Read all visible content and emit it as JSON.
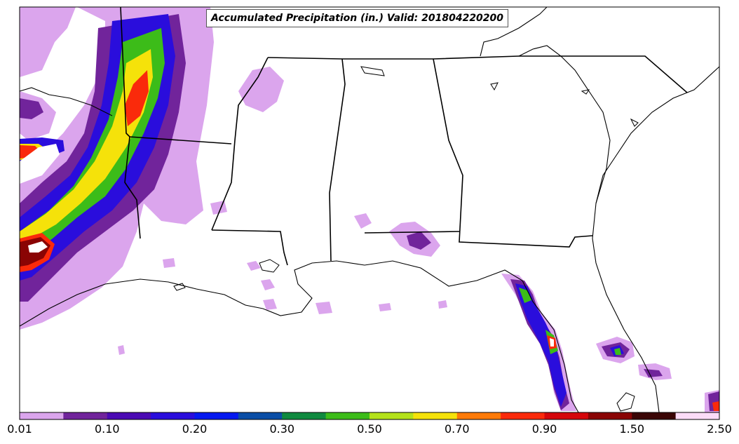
{
  "title": "Accumulated Precipitation (in.) Valid: 201804220200",
  "colorbar": {
    "colors": [
      "#dba5ed",
      "#71249b",
      "#4b0ab4",
      "#2a0ddc",
      "#0519f0",
      "#0a4ea6",
      "#0f8a3f",
      "#3cbc19",
      "#b4e21a",
      "#f5e20a",
      "#fe7a07",
      "#fa2a0b",
      "#d5060b",
      "#8a0404",
      "#3a0505",
      "#fcdcf8"
    ],
    "tick_labels": [
      "0.01",
      "0.10",
      "0.20",
      "0.30",
      "0.50",
      "0.70",
      "0.90",
      "1.50",
      "2.50"
    ]
  }
}
